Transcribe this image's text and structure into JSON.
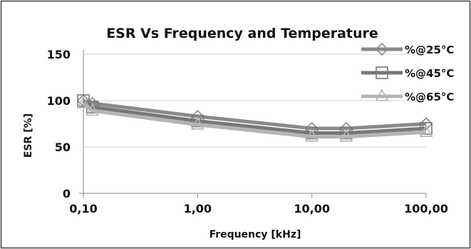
{
  "chart_data": {
    "type": "line",
    "title": "ESR Vs Frequency and Temperature",
    "xlabel": "Frequency [kHz]",
    "ylabel": "ESR [%]",
    "x_scale": "log",
    "xlim": [
      0.1,
      100
    ],
    "ylim": [
      0,
      150
    ],
    "x_ticks": [
      "0,10",
      "1,00",
      "10,00",
      "100,00"
    ],
    "y_ticks": [
      "0",
      "50",
      "100",
      "150"
    ],
    "grid": true,
    "legend_position": "top-right",
    "x": [
      0.1,
      0.12,
      1,
      10,
      20,
      100
    ],
    "series": [
      {
        "name": "%@25°C",
        "marker": "diamond",
        "color": "#8a8a8a",
        "values": [
          100,
          97,
          83,
          70,
          70,
          75
        ]
      },
      {
        "name": "%@45°C",
        "marker": "square",
        "color": "#777777",
        "values": [
          100,
          93,
          78,
          65,
          65,
          70
        ]
      },
      {
        "name": "%@65°C",
        "marker": "triangle",
        "color": "#b4b4b4",
        "values": [
          97,
          89,
          74,
          61,
          61,
          66
        ]
      }
    ]
  }
}
